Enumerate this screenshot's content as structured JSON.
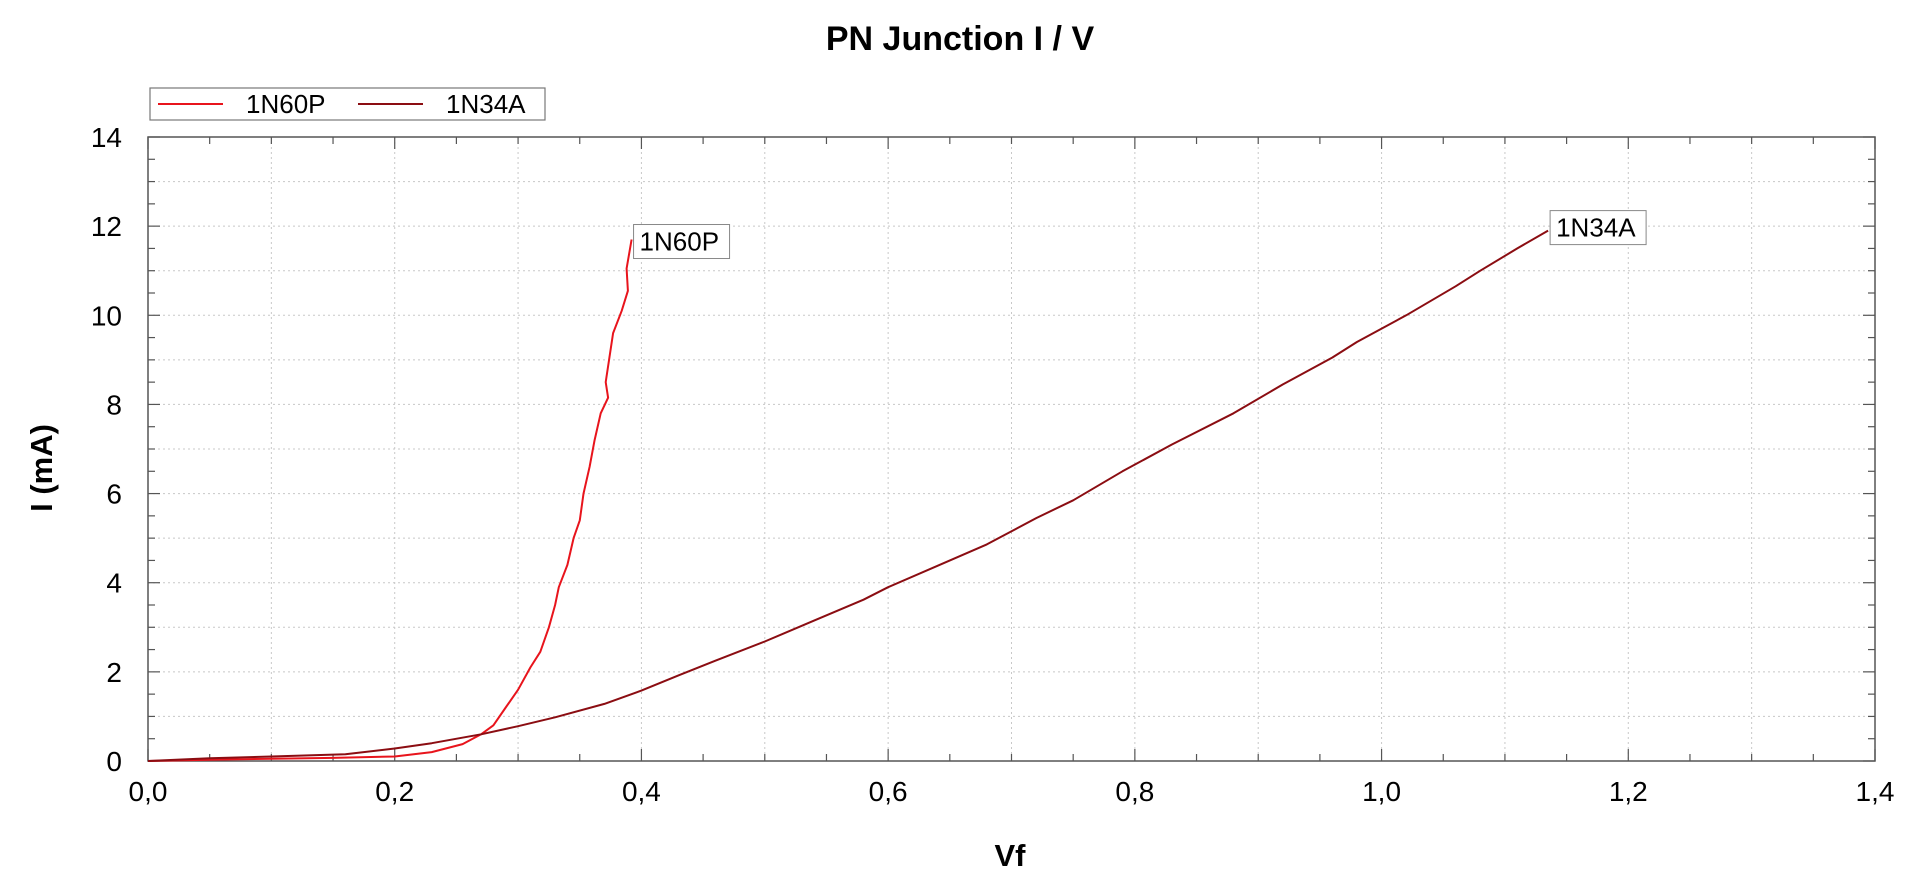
{
  "chart_data": {
    "type": "line",
    "title": "PN Junction I / V",
    "xlabel": "Vf",
    "ylabel": "I (mA)",
    "xlim": [
      0.0,
      1.4
    ],
    "ylim": [
      0,
      14
    ],
    "x_ticks": [
      0.0,
      0.2,
      0.4,
      0.6,
      0.8,
      1.0,
      1.2,
      1.4
    ],
    "x_tick_labels": [
      "0,0",
      "0,2",
      "0,4",
      "0,6",
      "0,8",
      "1,0",
      "1,2",
      "1,4"
    ],
    "y_ticks": [
      0,
      2,
      4,
      6,
      8,
      10,
      12,
      14
    ],
    "y_tick_labels": [
      "0",
      "2",
      "4",
      "6",
      "8",
      "10",
      "12",
      "14"
    ],
    "grid": true,
    "legend_position": "top-left",
    "series": [
      {
        "name": "1N60P",
        "color": "#e8141c",
        "end_label": "1N60P",
        "points": [
          [
            0.0,
            0.0
          ],
          [
            0.05,
            0.03
          ],
          [
            0.1,
            0.05
          ],
          [
            0.15,
            0.07
          ],
          [
            0.2,
            0.1
          ],
          [
            0.23,
            0.2
          ],
          [
            0.255,
            0.38
          ],
          [
            0.27,
            0.6
          ],
          [
            0.28,
            0.8
          ],
          [
            0.29,
            1.2
          ],
          [
            0.3,
            1.6
          ],
          [
            0.31,
            2.1
          ],
          [
            0.318,
            2.45
          ],
          [
            0.325,
            3.0
          ],
          [
            0.33,
            3.5
          ],
          [
            0.333,
            3.9
          ],
          [
            0.34,
            4.4
          ],
          [
            0.345,
            5.0
          ],
          [
            0.35,
            5.4
          ],
          [
            0.353,
            6.0
          ],
          [
            0.358,
            6.6
          ],
          [
            0.362,
            7.2
          ],
          [
            0.367,
            7.8
          ],
          [
            0.373,
            8.15
          ],
          [
            0.371,
            8.5
          ],
          [
            0.377,
            9.6
          ],
          [
            0.384,
            10.1
          ],
          [
            0.389,
            10.55
          ],
          [
            0.388,
            11.05
          ],
          [
            0.392,
            11.7
          ]
        ]
      },
      {
        "name": "1N34A",
        "color": "#8b0d12",
        "end_label": "1N34A",
        "points": [
          [
            0.0,
            0.0
          ],
          [
            0.05,
            0.06
          ],
          [
            0.1,
            0.1
          ],
          [
            0.16,
            0.15
          ],
          [
            0.2,
            0.28
          ],
          [
            0.23,
            0.4
          ],
          [
            0.27,
            0.6
          ],
          [
            0.3,
            0.78
          ],
          [
            0.33,
            0.98
          ],
          [
            0.37,
            1.28
          ],
          [
            0.4,
            1.58
          ],
          [
            0.43,
            1.92
          ],
          [
            0.46,
            2.25
          ],
          [
            0.5,
            2.68
          ],
          [
            0.54,
            3.15
          ],
          [
            0.58,
            3.62
          ],
          [
            0.6,
            3.9
          ],
          [
            0.64,
            4.38
          ],
          [
            0.68,
            4.86
          ],
          [
            0.72,
            5.45
          ],
          [
            0.75,
            5.85
          ],
          [
            0.79,
            6.5
          ],
          [
            0.83,
            7.1
          ],
          [
            0.88,
            7.8
          ],
          [
            0.92,
            8.45
          ],
          [
            0.96,
            9.05
          ],
          [
            0.98,
            9.4
          ],
          [
            1.02,
            10.0
          ],
          [
            1.06,
            10.65
          ],
          [
            1.08,
            11.0
          ],
          [
            1.11,
            11.5
          ],
          [
            1.135,
            11.9
          ]
        ]
      }
    ]
  }
}
